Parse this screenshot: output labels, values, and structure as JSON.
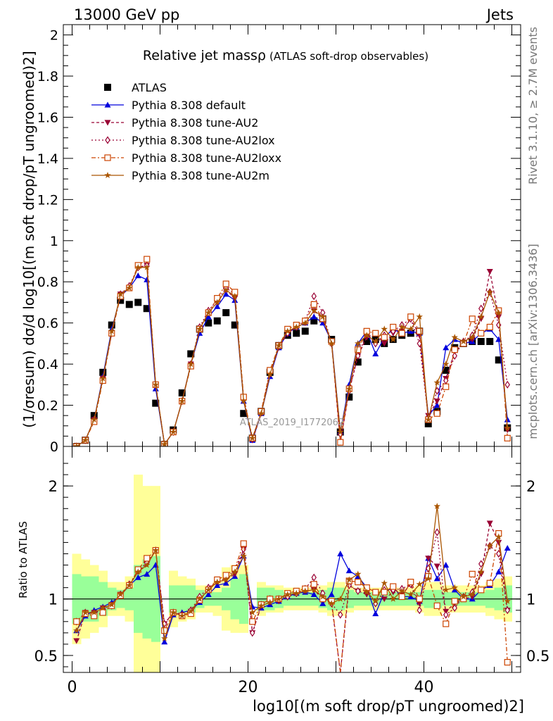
{
  "header": {
    "left": "13000 GeV pp",
    "right": "Jets"
  },
  "side_labels": {
    "rivet": "Rivet 3.1.10, ≥ 2.7M events",
    "mcplots": "mcplots.cern.ch [arXiv:1306.3436]"
  },
  "watermark": "ATLAS_2019_I1772062",
  "chart_data": [
    {
      "type": "line",
      "panel": "main",
      "title": "Relative jet massρ",
      "subtitle": "(ATLAS soft-drop observables)",
      "ylabel": "(1/σresum) dσ/d log10[(m soft drop/pT ungroomed)2]",
      "xlim": [
        -1,
        51
      ],
      "ylim": [
        0,
        2.05
      ],
      "yticks": [
        "0",
        "0.2",
        "0.4",
        "0.6",
        "0.8",
        "1",
        "1.2",
        "1.4",
        "1.6",
        "1.8",
        "2"
      ],
      "x": [
        0.5,
        1.5,
        2.5,
        3.5,
        4.5,
        5.5,
        6.5,
        7.5,
        8.5,
        9.5,
        10.5,
        11.5,
        12.5,
        13.5,
        14.5,
        15.5,
        16.5,
        17.5,
        18.5,
        19.5,
        20.5,
        21.5,
        22.5,
        23.5,
        24.5,
        25.5,
        26.5,
        27.5,
        28.5,
        29.5,
        30.5,
        31.5,
        32.5,
        33.5,
        34.5,
        35.5,
        36.5,
        37.5,
        38.5,
        39.5,
        40.5,
        41.5,
        42.5,
        43.5,
        44.5,
        45.5,
        46.5,
        47.5,
        48.5,
        49.5
      ],
      "legend": [
        "ATLAS",
        "Pythia 8.308 default",
        "Pythia 8.308 tune-AU2",
        "Pythia 8.308 tune-AU2lox",
        "Pythia 8.308 tune-AU2loxx",
        "Pythia 8.308 tune-AU2m"
      ],
      "legend_position": "top-left",
      "series": [
        {
          "name": "ATLAS",
          "color": "#000000",
          "marker": "square",
          "dash": "none",
          "values": [
            0.0,
            0.03,
            0.15,
            0.36,
            0.59,
            0.71,
            0.69,
            0.7,
            0.67,
            0.21,
            0.01,
            0.08,
            0.26,
            0.45,
            0.57,
            0.6,
            0.61,
            0.65,
            0.59,
            0.16,
            0.04,
            0.17,
            0.36,
            0.49,
            0.54,
            0.55,
            0.56,
            0.61,
            0.62,
            0.52,
            0.07,
            0.24,
            0.41,
            0.51,
            0.52,
            0.5,
            0.52,
            0.54,
            0.55,
            0.56,
            0.11,
            0.17,
            0.37,
            0.48,
            0.5,
            0.51,
            0.51,
            0.51,
            0.42,
            0.09
          ]
        },
        {
          "name": "Pythia 8.308 default",
          "color": "#0000dd",
          "marker": "triangle-up",
          "dash": "none",
          "values": [
            0.0,
            0.03,
            0.13,
            0.34,
            0.57,
            0.73,
            0.77,
            0.83,
            0.81,
            0.28,
            0.01,
            0.07,
            0.22,
            0.4,
            0.55,
            0.63,
            0.68,
            0.74,
            0.71,
            0.22,
            0.03,
            0.16,
            0.34,
            0.48,
            0.55,
            0.58,
            0.6,
            0.63,
            0.6,
            0.51,
            0.07,
            0.3,
            0.5,
            0.56,
            0.45,
            0.53,
            0.57,
            0.55,
            0.56,
            0.55,
            0.15,
            0.2,
            0.48,
            0.52,
            0.5,
            0.51,
            0.55,
            0.57,
            0.52,
            0.13
          ]
        },
        {
          "name": "Pythia 8.308 tune-AU2",
          "color": "#990033",
          "marker": "triangle-down",
          "dash": "4,3",
          "values": [
            0.0,
            0.03,
            0.13,
            0.33,
            0.55,
            0.74,
            0.77,
            0.87,
            0.88,
            0.3,
            0.01,
            0.07,
            0.22,
            0.4,
            0.57,
            0.65,
            0.7,
            0.76,
            0.72,
            0.23,
            0.03,
            0.16,
            0.35,
            0.48,
            0.55,
            0.58,
            0.6,
            0.66,
            0.62,
            0.5,
            0.02,
            0.27,
            0.44,
            0.53,
            0.55,
            0.5,
            0.55,
            0.56,
            0.62,
            0.54,
            0.15,
            0.22,
            0.33,
            0.46,
            0.5,
            0.52,
            0.62,
            0.85,
            0.63,
            0.08
          ]
        },
        {
          "name": "Pythia 8.308 tune-AU2lox",
          "color": "#990033",
          "marker": "diamond-open",
          "dash": "2,3",
          "values": [
            0.0,
            0.03,
            0.13,
            0.33,
            0.55,
            0.74,
            0.78,
            0.87,
            0.88,
            0.3,
            0.01,
            0.07,
            0.22,
            0.4,
            0.58,
            0.66,
            0.71,
            0.77,
            0.74,
            0.23,
            0.04,
            0.17,
            0.36,
            0.49,
            0.55,
            0.58,
            0.61,
            0.73,
            0.65,
            0.5,
            0.06,
            0.27,
            0.44,
            0.55,
            0.5,
            0.54,
            0.56,
            0.59,
            0.62,
            0.5,
            0.14,
            0.27,
            0.32,
            0.44,
            0.51,
            0.54,
            0.67,
            0.75,
            0.59,
            0.3
          ]
        },
        {
          "name": "Pythia 8.308 tune-AU2loxx",
          "color": "#cc4400",
          "marker": "square-open",
          "dash": "6,3,2,3",
          "values": [
            0.0,
            0.03,
            0.12,
            0.32,
            0.55,
            0.73,
            0.77,
            0.88,
            0.91,
            0.3,
            0.01,
            0.07,
            0.22,
            0.39,
            0.57,
            0.65,
            0.72,
            0.79,
            0.75,
            0.24,
            0.04,
            0.17,
            0.37,
            0.49,
            0.57,
            0.59,
            0.61,
            0.69,
            0.62,
            0.51,
            0.02,
            0.28,
            0.47,
            0.56,
            0.55,
            0.53,
            0.58,
            0.55,
            0.63,
            0.56,
            0.13,
            0.16,
            0.29,
            0.47,
            0.5,
            0.62,
            0.55,
            0.58,
            0.66,
            0.04
          ]
        },
        {
          "name": "Pythia 8.308 tune-AU2m",
          "color": "#aa5500",
          "marker": "star",
          "dash": "none",
          "values": [
            0.0,
            0.03,
            0.13,
            0.33,
            0.56,
            0.74,
            0.77,
            0.87,
            0.87,
            0.3,
            0.01,
            0.07,
            0.22,
            0.4,
            0.57,
            0.65,
            0.7,
            0.76,
            0.73,
            0.22,
            0.04,
            0.16,
            0.35,
            0.49,
            0.56,
            0.58,
            0.6,
            0.66,
            0.63,
            0.5,
            0.07,
            0.28,
            0.5,
            0.54,
            0.51,
            0.57,
            0.52,
            0.58,
            0.57,
            0.63,
            0.13,
            0.31,
            0.4,
            0.53,
            0.51,
            0.53,
            0.63,
            0.75,
            0.65,
            0.09
          ]
        }
      ]
    },
    {
      "type": "line",
      "panel": "ratio",
      "ylabel": "Ratio to ATLAS",
      "xlabel": "log10[(m soft drop/pT ungroomed)2]",
      "xlim": [
        -1,
        51
      ],
      "ylim": [
        0.35,
        2.35
      ],
      "yticks": [
        "0.5",
        "1",
        "2"
      ],
      "xticks": [
        "0",
        "20",
        "40"
      ],
      "reference_line": 1,
      "band_stat": [
        0.22,
        0.2,
        0.2,
        0.15,
        0.1,
        0.08,
        0.1,
        0.3,
        0.35,
        0.38,
        0.0,
        0.12,
        0.12,
        0.12,
        0.08,
        0.06,
        0.06,
        0.1,
        0.18,
        0.22,
        0.0,
        0.1,
        0.1,
        0.08,
        0.06,
        0.06,
        0.06,
        0.06,
        0.08,
        0.1,
        0.1,
        0.08,
        0.06,
        0.06,
        0.06,
        0.06,
        0.06,
        0.06,
        0.06,
        0.06,
        0.08,
        0.08,
        0.06,
        0.06,
        0.06,
        0.06,
        0.06,
        0.08,
        0.1,
        0.12
      ],
      "band_total": [
        0.4,
        0.35,
        0.3,
        0.25,
        0.15,
        0.15,
        0.2,
        1.1,
        1.0,
        1.0,
        0.0,
        0.25,
        0.2,
        0.18,
        0.12,
        0.12,
        0.15,
        0.28,
        0.3,
        0.3,
        0.0,
        0.15,
        0.12,
        0.12,
        0.1,
        0.1,
        0.1,
        0.1,
        0.12,
        0.15,
        0.15,
        0.12,
        0.1,
        0.1,
        0.1,
        0.1,
        0.1,
        0.1,
        0.1,
        0.12,
        0.15,
        0.15,
        0.12,
        0.12,
        0.12,
        0.12,
        0.12,
        0.15,
        0.18,
        0.2
      ],
      "series": [
        {
          "name": "Pythia 8.308 default",
          "values": [
            0.72,
            0.85,
            0.9,
            0.93,
            0.97,
            1.03,
            1.12,
            1.19,
            1.22,
            1.3,
            0.62,
            0.86,
            0.88,
            0.9,
            0.97,
            1.04,
            1.12,
            1.14,
            1.2,
            1.38,
            0.93,
            0.92,
            0.95,
            0.98,
            1.02,
            1.05,
            1.06,
            1.04,
            0.96,
            1.04,
            1.4,
            1.25,
            1.2,
            1.1,
            0.87,
            1.06,
            1.1,
            1.02,
            1.02,
            0.98,
            1.36,
            1.18,
            1.3,
            1.08,
            1.0,
            1.0,
            1.08,
            1.12,
            1.24,
            1.45
          ]
        },
        {
          "name": "Pythia 8.308 tune-AU2",
          "values": [
            0.63,
            0.88,
            0.88,
            0.92,
            0.95,
            1.04,
            1.12,
            1.24,
            1.31,
            1.43,
            0.78,
            0.88,
            0.85,
            0.89,
            1.0,
            1.08,
            1.15,
            1.17,
            1.22,
            1.44,
            0.7,
            0.94,
            0.97,
            0.98,
            1.02,
            1.05,
            1.07,
            1.08,
            1.0,
            0.96,
            0.3,
            1.12,
            1.07,
            1.04,
            1.06,
            1.0,
            1.06,
            1.04,
            1.13,
            0.96,
            1.36,
            1.29,
            0.89,
            0.96,
            1.0,
            1.02,
            1.22,
            1.67,
            1.5,
            0.9
          ]
        },
        {
          "name": "Pythia 8.308 tune-AU2lox",
          "values": [
            0.8,
            0.88,
            0.87,
            0.91,
            0.94,
            1.04,
            1.13,
            1.25,
            1.32,
            1.43,
            0.78,
            0.88,
            0.86,
            0.9,
            1.02,
            1.1,
            1.16,
            1.18,
            1.26,
            1.44,
            0.7,
            0.95,
            1.0,
            1.0,
            1.02,
            1.05,
            1.09,
            1.19,
            1.05,
            0.96,
            0.86,
            1.12,
            1.07,
            1.08,
            0.96,
            1.08,
            1.08,
            1.09,
            1.13,
            0.9,
            1.27,
            1.59,
            0.86,
            0.92,
            1.02,
            1.06,
            1.31,
            1.47,
            1.4,
            0.9
          ]
        },
        {
          "name": "Pythia 8.308 tune-AU2loxx",
          "values": [
            0.8,
            0.87,
            0.85,
            0.88,
            0.94,
            1.03,
            1.12,
            1.26,
            1.36,
            1.43,
            0.72,
            0.88,
            0.85,
            0.87,
            0.99,
            1.08,
            1.17,
            1.21,
            1.27,
            1.49,
            0.8,
            0.95,
            1.0,
            1.0,
            1.05,
            1.07,
            1.09,
            1.13,
            1.0,
            0.98,
            0.3,
            1.16,
            1.15,
            1.1,
            1.06,
            1.06,
            1.11,
            1.02,
            1.15,
            1.0,
            1.2,
            0.94,
            0.78,
            0.98,
            1.0,
            1.22,
            1.08,
            1.14,
            1.58,
            0.44
          ]
        },
        {
          "name": "Pythia 8.308 tune-AU2m",
          "values": [
            0.72,
            0.88,
            0.88,
            0.92,
            0.95,
            1.04,
            1.12,
            1.24,
            1.3,
            1.43,
            0.65,
            0.88,
            0.85,
            0.89,
            1.0,
            1.08,
            1.15,
            1.17,
            1.24,
            1.38,
            0.88,
            0.94,
            0.97,
            1.0,
            1.04,
            1.05,
            1.07,
            1.08,
            1.02,
            0.96,
            1.0,
            1.17,
            1.22,
            1.06,
            0.98,
            1.14,
            1.0,
            1.07,
            1.04,
            1.13,
            1.18,
            1.82,
            1.08,
            1.1,
            1.02,
            1.04,
            1.24,
            1.47,
            1.55,
            0.98
          ]
        }
      ]
    }
  ]
}
